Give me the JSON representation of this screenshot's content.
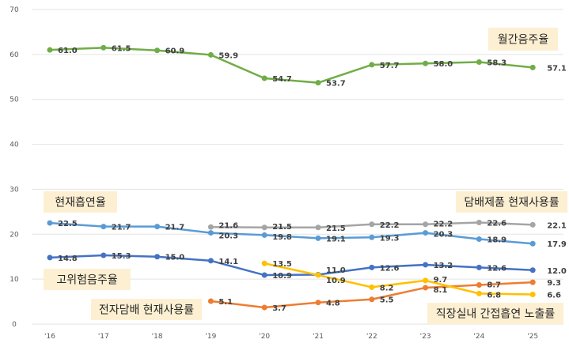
{
  "chart_data": {
    "type": "line",
    "title": "",
    "xlabel": "",
    "ylabel": "",
    "ylim": [
      0,
      70
    ],
    "yticks": [
      "0",
      "10",
      "20",
      "30",
      "40",
      "50",
      "60",
      "70"
    ],
    "categories": [
      "'16",
      "'17",
      "'18",
      "'19",
      "'20",
      "'21",
      "'22",
      "'23",
      "'24",
      "'25"
    ],
    "grid": true,
    "series": [
      {
        "name": "월간음주율",
        "color": "#70ad47",
        "values": [
          61.0,
          61.5,
          60.9,
          59.9,
          54.7,
          53.7,
          57.7,
          58.0,
          58.3,
          57.1
        ]
      },
      {
        "name": "현재흡연율",
        "color": "#5b9bd5",
        "values": [
          22.5,
          21.7,
          21.7,
          20.3,
          19.8,
          19.1,
          19.3,
          20.3,
          18.9,
          17.9
        ]
      },
      {
        "name": "담배제품 현재사용률",
        "color": "#a5a5a5",
        "values": [
          null,
          null,
          null,
          21.6,
          21.5,
          21.5,
          22.2,
          22.2,
          22.6,
          22.1
        ]
      },
      {
        "name": "고위험음주율",
        "color": "#4472c4",
        "values": [
          14.8,
          15.3,
          15.0,
          14.1,
          10.9,
          11.0,
          12.6,
          13.2,
          12.6,
          12.0
        ]
      },
      {
        "name": "전자담배 현재사용률",
        "color": "#ed7d31",
        "values": [
          null,
          null,
          null,
          5.1,
          3.7,
          4.8,
          5.5,
          8.1,
          8.7,
          9.3
        ]
      },
      {
        "name": "직장실내 간접흡연 노출률",
        "color": "#ffc000",
        "values": [
          null,
          null,
          null,
          null,
          13.5,
          10.9,
          8.2,
          9.7,
          6.8,
          6.6
        ]
      }
    ]
  }
}
